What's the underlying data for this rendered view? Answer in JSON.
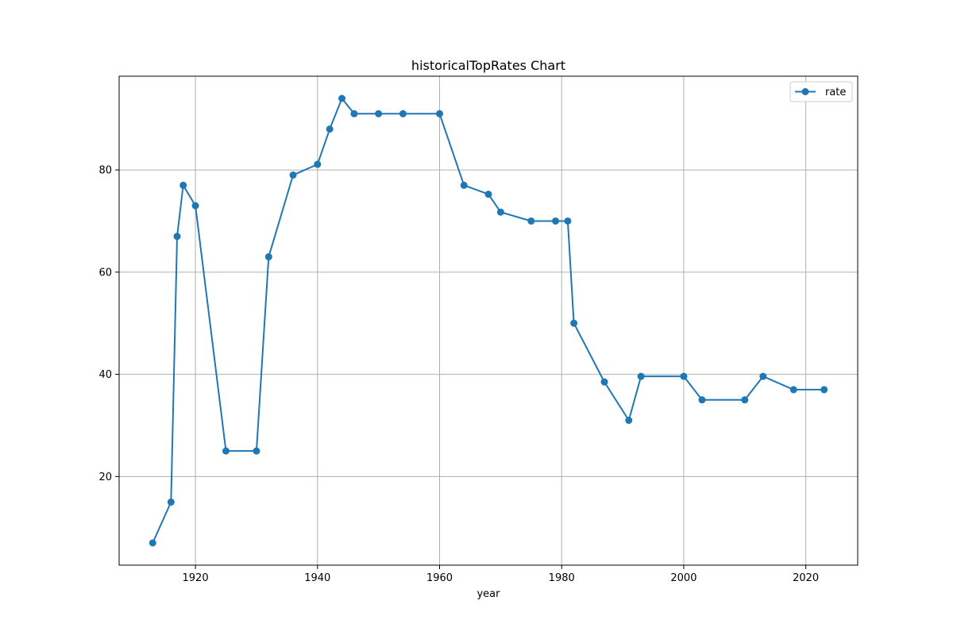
{
  "chart_data": {
    "type": "line",
    "title": "historicalTopRates Chart",
    "xlabel": "year",
    "ylabel": "",
    "xlim": [
      1907.5,
      2028.5
    ],
    "ylim": [
      2.65,
      98.35
    ],
    "x_ticks": [
      1920,
      1940,
      1960,
      1980,
      2000,
      2020
    ],
    "y_ticks": [
      20,
      40,
      60,
      80
    ],
    "grid": true,
    "legend_position": "top-right",
    "series": [
      {
        "name": "rate",
        "color": "#1f77b4",
        "marker": "circle",
        "points": [
          {
            "x": 1913,
            "y": 7
          },
          {
            "x": 1916,
            "y": 15
          },
          {
            "x": 1917,
            "y": 67
          },
          {
            "x": 1918,
            "y": 77
          },
          {
            "x": 1920,
            "y": 73
          },
          {
            "x": 1925,
            "y": 25
          },
          {
            "x": 1930,
            "y": 25
          },
          {
            "x": 1932,
            "y": 63
          },
          {
            "x": 1936,
            "y": 79
          },
          {
            "x": 1940,
            "y": 81.1
          },
          {
            "x": 1942,
            "y": 88
          },
          {
            "x": 1944,
            "y": 94
          },
          {
            "x": 1946,
            "y": 91
          },
          {
            "x": 1950,
            "y": 91
          },
          {
            "x": 1954,
            "y": 91
          },
          {
            "x": 1960,
            "y": 91
          },
          {
            "x": 1964,
            "y": 77
          },
          {
            "x": 1968,
            "y": 75.25
          },
          {
            "x": 1970,
            "y": 71.75
          },
          {
            "x": 1975,
            "y": 70
          },
          {
            "x": 1979,
            "y": 70
          },
          {
            "x": 1981,
            "y": 70
          },
          {
            "x": 1982,
            "y": 50
          },
          {
            "x": 1987,
            "y": 38.5
          },
          {
            "x": 1991,
            "y": 31
          },
          {
            "x": 1993,
            "y": 39.6
          },
          {
            "x": 2000,
            "y": 39.6
          },
          {
            "x": 2003,
            "y": 35
          },
          {
            "x": 2010,
            "y": 35
          },
          {
            "x": 2013,
            "y": 39.6
          },
          {
            "x": 2018,
            "y": 37
          },
          {
            "x": 2023,
            "y": 37
          }
        ]
      }
    ]
  }
}
